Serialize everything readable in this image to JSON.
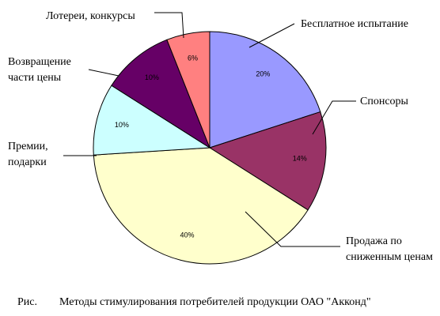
{
  "chart_data": {
    "type": "pie",
    "figure_label": "Рис.",
    "title": "Методы стимулирования потребителей продукции ОАО \"Акконд\"",
    "categories": [
      "Бесплатное испытание",
      "Спонсоры",
      "Продажа по\nсниженным ценам",
      "Премии,\nподарки",
      "Возвращение\nчасти цены",
      "Лотереи, конкурсы"
    ],
    "values": [
      20,
      14,
      40,
      10,
      10,
      6
    ],
    "value_labels": [
      "20%",
      "14%",
      "40%",
      "10%",
      "10%",
      "6%"
    ],
    "colors": [
      "#9999ff",
      "#993366",
      "#ffffcc",
      "#ccffff",
      "#660066",
      "#ff8080"
    ]
  }
}
